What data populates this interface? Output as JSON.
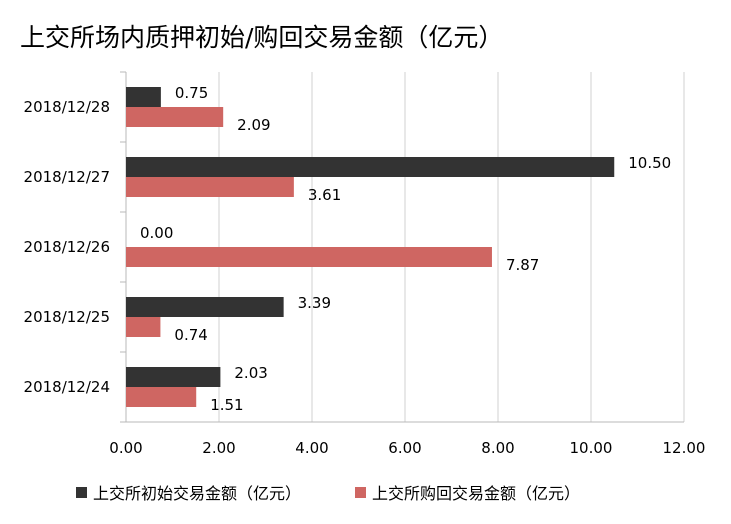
{
  "title": "上交所场内质押初始/购回交易金额（亿元）",
  "colors": {
    "series0": "#333333",
    "series1": "#cf6662",
    "grid": "#d0d0d0"
  },
  "chart_data": {
    "type": "bar",
    "orientation": "horizontal",
    "title": "上交所场内质押初始/购回交易金额（亿元）",
    "categories": [
      "2018/12/28",
      "2018/12/27",
      "2018/12/26",
      "2018/12/25",
      "2018/12/24"
    ],
    "series": [
      {
        "name": "上交所初始交易金额（亿元）",
        "values": [
          0.75,
          10.5,
          0.0,
          3.39,
          2.03
        ],
        "labels": [
          "0.75",
          "10.50",
          "0.00",
          "3.39",
          "2.03"
        ]
      },
      {
        "name": "上交所购回交易金额（亿元）",
        "values": [
          2.09,
          3.61,
          7.87,
          0.74,
          1.51
        ],
        "labels": [
          "2.09",
          "3.61",
          "7.87",
          "0.74",
          "1.51"
        ]
      }
    ],
    "xlim": [
      0,
      12
    ],
    "xticks": [
      "0.00",
      "2.00",
      "4.00",
      "6.00",
      "8.00",
      "10.00",
      "12.00"
    ],
    "grid": true,
    "legend_position": "bottom"
  }
}
